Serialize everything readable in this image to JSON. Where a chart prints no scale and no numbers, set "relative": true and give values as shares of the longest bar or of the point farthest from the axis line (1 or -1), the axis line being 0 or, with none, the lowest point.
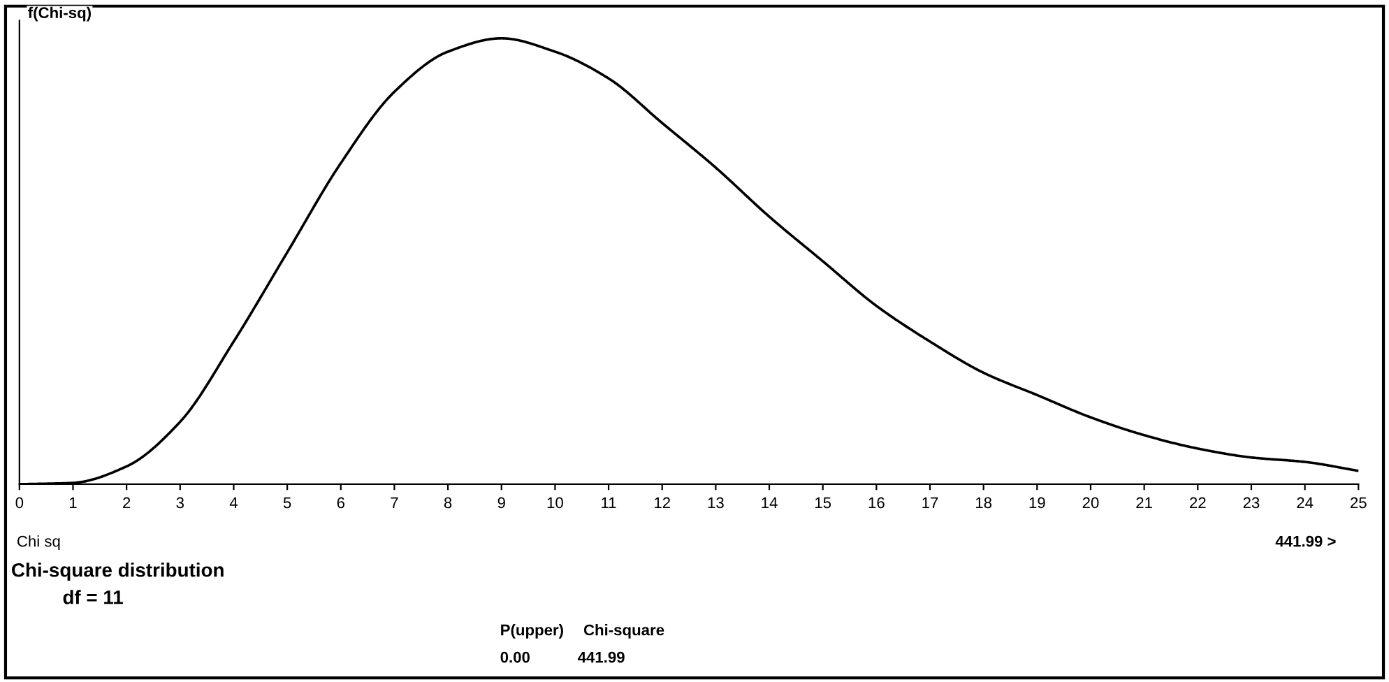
{
  "chart_data": {
    "type": "line",
    "title": "Chi-square distribution",
    "subtitle": "df = 11",
    "xlabel": "Chi sq",
    "ylabel": "f(Chi-sq)",
    "annotations": [
      "P(upper)",
      "0.00",
      "Chi-square",
      "441.99",
      "441.99 >"
    ],
    "relative": true,
    "tick_labels": "x",
    "grid": false,
    "legend": false,
    "marker": "none",
    "line_style": "solid",
    "xlim": [
      0,
      25
    ],
    "xticks": [
      0,
      1,
      2,
      3,
      4,
      5,
      6,
      7,
      8,
      9,
      10,
      11,
      12,
      13,
      14,
      15,
      16,
      17,
      18,
      19,
      20,
      21,
      22,
      23,
      24,
      25
    ],
    "x": [
      0,
      1,
      2,
      3,
      4,
      5,
      6,
      7,
      8,
      9,
      10,
      11,
      12,
      13,
      14,
      15,
      16,
      17,
      18,
      19,
      20,
      21,
      22,
      23,
      24,
      25
    ],
    "series": [
      {
        "color": "#000000",
        "values": [
          0,
          0.003,
          0.04,
          0.14,
          0.32,
          0.52,
          0.72,
          0.88,
          0.97,
          1,
          0.97,
          0.91,
          0.81,
          0.71,
          0.6,
          0.5,
          0.4,
          0.32,
          0.25,
          0.2,
          0.15,
          0.11,
          0.08,
          0.06,
          0.05,
          0.03
        ]
      }
    ]
  }
}
